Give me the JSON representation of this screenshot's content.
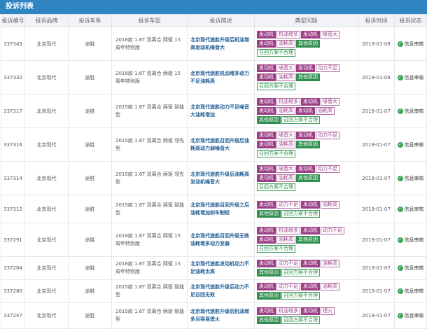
{
  "panel_title": "投诉列表",
  "columns": [
    "投诉编号",
    "投诉品牌",
    "投诉车系",
    "投诉车型",
    "投诉简述",
    "典型问题",
    "投诉时间",
    "投诉状态"
  ],
  "rows": [
    {
      "id": "337343",
      "brand": "北京现代",
      "series": "途胜",
      "model": "2018款 1.6T 双离合 两驱 15周年特别版",
      "desc": "北京现代途胜升级后机油增高发动机噪音大",
      "tags": [
        {
          "t": "发动机",
          "k": 1
        },
        {
          "t": "机油增多",
          "k": 2
        },
        {
          "t": "发动机",
          "k": 1
        },
        {
          "t": "噪音大",
          "k": 2
        },
        {
          "t": "发动机",
          "k": 1
        },
        {
          "t": "油耗高",
          "k": 2
        },
        {
          "t": "其他原因",
          "k": 3
        },
        {
          "t": "召回方案不合理",
          "k": 4
        }
      ],
      "date": "2019-01-08",
      "status": "信息审核"
    },
    {
      "id": "337332",
      "brand": "北京现代",
      "series": "途胜",
      "model": "2018款 1.6T 双离合 两驱 15周年特别版",
      "desc": "北京现代途胜机油增多动力不足油耗高",
      "tags": [
        {
          "t": "发动机",
          "k": 1
        },
        {
          "t": "噪音大",
          "k": 2
        },
        {
          "t": "发动机",
          "k": 1
        },
        {
          "t": "动力不足",
          "k": 2
        },
        {
          "t": "发动机",
          "k": 1
        },
        {
          "t": "油耗高",
          "k": 2
        },
        {
          "t": "其他原因",
          "k": 3
        },
        {
          "t": "召回方案不合理",
          "k": 4
        }
      ],
      "date": "2019-01-08",
      "status": "信息审核"
    },
    {
      "id": "337317",
      "brand": "北京现代",
      "series": "途胜",
      "model": "2015款 1.6T 双离合 两驱 智能型",
      "desc": "北京现代途胜动力不足噪音大油耗增加",
      "tags": [
        {
          "t": "发动机",
          "k": 1
        },
        {
          "t": "机油增多",
          "k": 2
        },
        {
          "t": "发动机",
          "k": 1
        },
        {
          "t": "噪音大",
          "k": 2
        },
        {
          "t": "发动机",
          "k": 1
        },
        {
          "t": "油耗高",
          "k": 2
        },
        {
          "t": "发动机",
          "k": 1
        },
        {
          "t": "油耗高",
          "k": 2
        },
        {
          "t": "其他原因",
          "k": 3
        },
        {
          "t": "召回方案不合理",
          "k": 4
        }
      ],
      "date": "2019-01-07",
      "status": "信息审核"
    },
    {
      "id": "337316",
      "brand": "北京现代",
      "series": "途胜",
      "model": "2015款 1.6T 双离合 两驱 领先型",
      "desc": "北京现代途胜召回升级后油耗高动力弱噪音大",
      "tags": [
        {
          "t": "发动机",
          "k": 1
        },
        {
          "t": "噪音大",
          "k": 2
        },
        {
          "t": "发动机",
          "k": 1
        },
        {
          "t": "动力不足",
          "k": 2
        },
        {
          "t": "发动机",
          "k": 1
        },
        {
          "t": "油耗高",
          "k": 2
        },
        {
          "t": "其他原因",
          "k": 3
        },
        {
          "t": "召回方案不合理",
          "k": 4
        }
      ],
      "date": "2019-01-07",
      "status": "信息审核"
    },
    {
      "id": "337314",
      "brand": "北京现代",
      "series": "途胜",
      "model": "2015款 1.6T 双离合 两驱 领先型",
      "desc": "北京现代途胜升级后油耗高发动机噪音大",
      "tags": [
        {
          "t": "发动机",
          "k": 1
        },
        {
          "t": "噪音大",
          "k": 2
        },
        {
          "t": "发动机",
          "k": 1
        },
        {
          "t": "动力不足",
          "k": 2
        },
        {
          "t": "发动机",
          "k": 1
        },
        {
          "t": "油耗高",
          "k": 2
        },
        {
          "t": "其他原因",
          "k": 3
        },
        {
          "t": "召回方案不合理",
          "k": 4
        }
      ],
      "date": "2019-01-07",
      "status": "信息审核"
    },
    {
      "id": "337312",
      "brand": "北京现代",
      "series": "途胜",
      "model": "2015款 1.6T 双离合 两驱 智能型",
      "desc": "北京现代途胜召回升级之后油耗增加刹车制轻",
      "tags": [
        {
          "t": "发动机",
          "k": 1
        },
        {
          "t": "动力不足",
          "k": 2
        },
        {
          "t": "发动机",
          "k": 1
        },
        {
          "t": "油耗高",
          "k": 2
        },
        {
          "t": "其他原因",
          "k": 3
        },
        {
          "t": "召回方案不合理",
          "k": 4
        }
      ],
      "date": "2019-01-07",
      "status": "信息审核"
    },
    {
      "id": "337291",
      "brand": "北京现代",
      "series": "途胜",
      "model": "2018款 1.6T 双离合 两驱 15周年特别版",
      "desc": "北京现代途胜召回升级无效油耗增多动力变弱",
      "tags": [
        {
          "t": "发动机",
          "k": 1
        },
        {
          "t": "机油增多",
          "k": 2
        },
        {
          "t": "发动机",
          "k": 1
        },
        {
          "t": "动力不足",
          "k": 2
        },
        {
          "t": "发动机",
          "k": 1
        },
        {
          "t": "油耗高",
          "k": 2
        },
        {
          "t": "其他原因",
          "k": 3
        },
        {
          "t": "召回方案不合理",
          "k": 4
        }
      ],
      "date": "2019-01-07",
      "status": "信息审核"
    },
    {
      "id": "337284",
      "brand": "北京现代",
      "series": "途胜",
      "model": "2018款 1.6T 双离合 两驱 15周年特别版",
      "desc": "北京现代途胜发动机动力不足油耗太高",
      "tags": [
        {
          "t": "发动机",
          "k": 1
        },
        {
          "t": "动力不足",
          "k": 2
        },
        {
          "t": "发动机",
          "k": 1
        },
        {
          "t": "油耗高",
          "k": 2
        },
        {
          "t": "其他原因",
          "k": 3
        },
        {
          "t": "召回方案不合理",
          "k": 4
        }
      ],
      "date": "2019-01-07",
      "status": "信息审核"
    },
    {
      "id": "337280",
      "brand": "北京现代",
      "series": "途胜",
      "model": "2015款 1.6T 双离合 两驱 智能型",
      "desc": "北京现代途胜升级后动力不足召回无效",
      "tags": [
        {
          "t": "发动机",
          "k": 1
        },
        {
          "t": "动力不足",
          "k": 2
        },
        {
          "t": "发动机",
          "k": 1
        },
        {
          "t": "油耗高",
          "k": 2
        },
        {
          "t": "其他原因",
          "k": 3
        },
        {
          "t": "召回方案不合理",
          "k": 4
        }
      ],
      "date": "2019-01-07",
      "status": "信息审核"
    },
    {
      "id": "337247",
      "brand": "北京现代",
      "series": "途胜",
      "model": "2015款 1.6T 双离合 两驱 智能型",
      "desc": "北京现代途胜升级后机油增多且容易熄火",
      "tags": [
        {
          "t": "发动机",
          "k": 1
        },
        {
          "t": "机油增多",
          "k": 2
        },
        {
          "t": "发动机",
          "k": 1
        },
        {
          "t": "熄火",
          "k": 2
        },
        {
          "t": "其他原因",
          "k": 3
        },
        {
          "t": "召回方案不合理",
          "k": 4
        }
      ],
      "date": "2019-01-07",
      "status": "信息审核"
    }
  ]
}
